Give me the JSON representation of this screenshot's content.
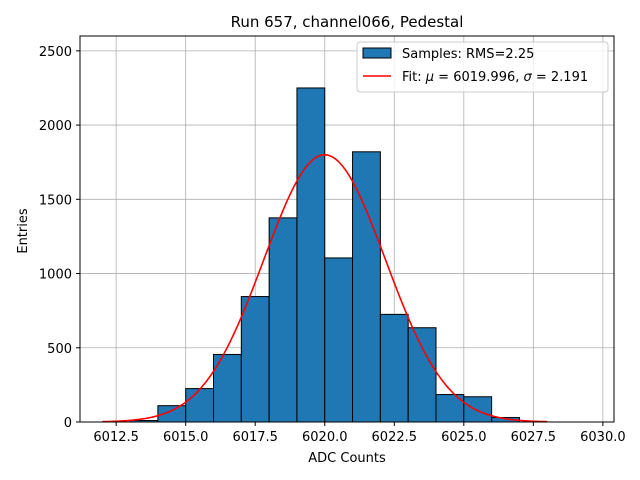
{
  "chart_data": {
    "type": "bar",
    "title": "Run 657, channel066, Pedestal",
    "xlabel": "ADC Counts",
    "ylabel": "Entries",
    "xlim": [
      6011.2,
      6030.4
    ],
    "ylim": [
      0,
      2600
    ],
    "xticks": [
      6012.5,
      6015.0,
      6017.5,
      6020.0,
      6022.5,
      6025.0,
      6027.5,
      6030.0
    ],
    "xtick_labels": [
      "6012.5",
      "6015.0",
      "6017.5",
      "6020.0",
      "6022.5",
      "6025.0",
      "6027.5",
      "6030.0"
    ],
    "yticks": [
      0,
      500,
      1000,
      1500,
      2000,
      2500
    ],
    "ytick_labels": [
      "0",
      "500",
      "1000",
      "1500",
      "2000",
      "2500"
    ],
    "grid": true,
    "legend_position": "top-right",
    "colors": {
      "bars": "#1f77b4",
      "edge": "#000000",
      "fit": "#ff0000",
      "grid": "#b0b0b0"
    },
    "series": [
      {
        "name": "Samples: RMS=2.25",
        "kind": "histogram",
        "bin_edges": [
          6012,
          6013,
          6014,
          6015,
          6016,
          6017,
          6018,
          6019,
          6020,
          6021,
          6022,
          6023,
          6024,
          6025,
          6026,
          6027,
          6028,
          6029,
          6030
        ],
        "values": [
          0,
          10,
          110,
          225,
          455,
          845,
          1375,
          2250,
          1105,
          1820,
          725,
          635,
          185,
          170,
          30,
          0,
          0,
          0
        ]
      },
      {
        "name": "Fit: μ = 6019.996, σ = 2.191",
        "kind": "gaussian",
        "mu": 6019.996,
        "sigma": 2.191,
        "amplitude": 1800,
        "x_range": [
          6012,
          6028
        ]
      }
    ],
    "legend": [
      {
        "label_prefix": "Samples: RMS=2.25",
        "type": "patch"
      },
      {
        "label_prefix": "Fit: ",
        "mu_symbol": "μ",
        "mu_text": " = 6019.996, ",
        "sigma_symbol": "σ",
        "sigma_text": " = 2.191",
        "type": "line"
      }
    ]
  }
}
